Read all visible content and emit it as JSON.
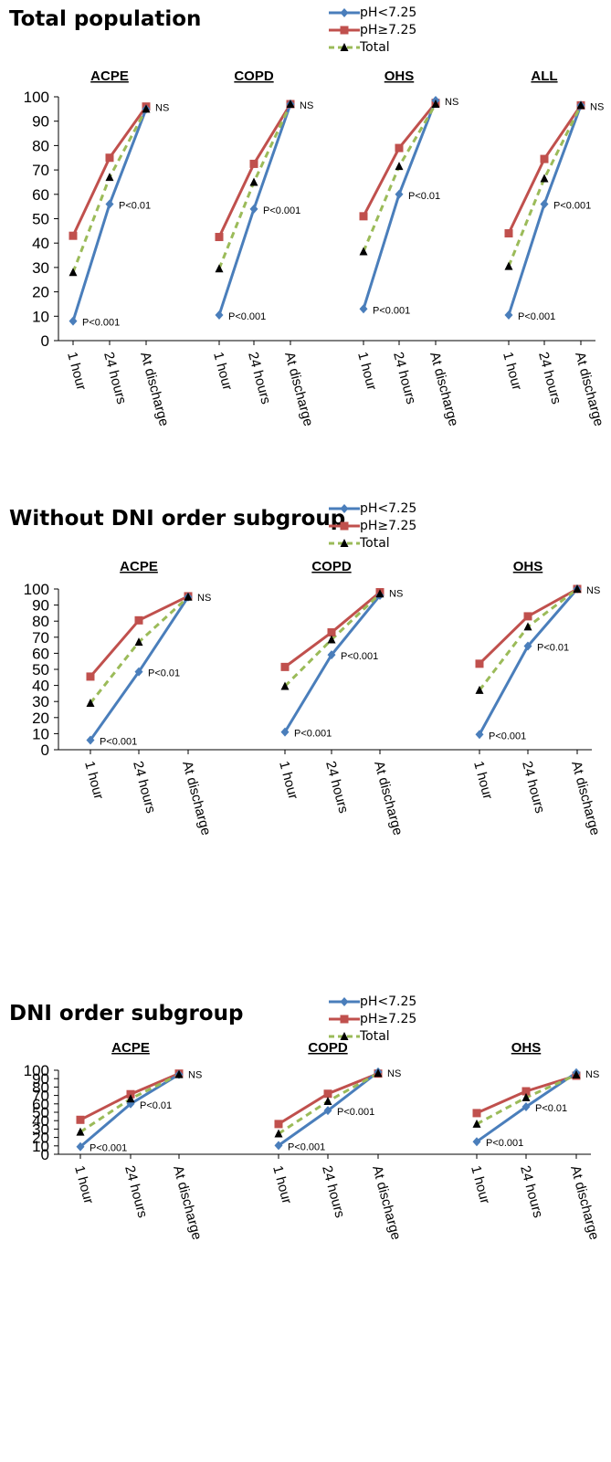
{
  "legend": {
    "series": [
      {
        "name": "pH<7.25",
        "color": "#4a7ebb",
        "marker": "diamond",
        "dash": false
      },
      {
        "name": "pH≥7.25",
        "color": "#c0504d",
        "marker": "square",
        "dash": false
      },
      {
        "name": "Total",
        "color": "#9bbb59",
        "marker": "triangle",
        "dash": true
      }
    ]
  },
  "chart_data": [
    {
      "type": "line",
      "title": "Total population",
      "ylim": [
        0,
        100
      ],
      "yticks": [
        0,
        10,
        20,
        30,
        40,
        50,
        60,
        70,
        80,
        90,
        100
      ],
      "categories": [
        "1 hour",
        "24 hours",
        "At discharge"
      ],
      "groups": [
        {
          "name": "ACPE",
          "series": [
            {
              "name": "pH<7.25",
              "values": [
                8,
                56,
                95
              ]
            },
            {
              "name": "pH≥7.25",
              "values": [
                43,
                75,
                96
              ]
            },
            {
              "name": "Total",
              "values": [
                28,
                67,
                95
              ]
            }
          ],
          "annotations": [
            "P<0.001",
            "P<0.01",
            "NS"
          ]
        },
        {
          "name": "COPD",
          "series": [
            {
              "name": "pH<7.25",
              "values": [
                10.5,
                54,
                97
              ]
            },
            {
              "name": "pH≥7.25",
              "values": [
                42.5,
                72.5,
                97
              ]
            },
            {
              "name": "Total",
              "values": [
                29.5,
                65,
                97
              ]
            }
          ],
          "annotations": [
            "P<0.001",
            "P<0.001",
            "NS"
          ]
        },
        {
          "name": "OHS",
          "series": [
            {
              "name": "pH<7.25",
              "values": [
                13,
                60,
                98.5
              ]
            },
            {
              "name": "pH≥7.25",
              "values": [
                51,
                79,
                97.5
              ]
            },
            {
              "name": "Total",
              "values": [
                36.5,
                71.5,
                97
              ]
            }
          ],
          "annotations": [
            "P<0.001",
            "P<0.01",
            "NS"
          ]
        },
        {
          "name": "ALL",
          "series": [
            {
              "name": "pH<7.25",
              "values": [
                10.5,
                56,
                96.5
              ]
            },
            {
              "name": "pH≥7.25",
              "values": [
                44,
                74.5,
                96.5
              ]
            },
            {
              "name": "Total",
              "values": [
                30.5,
                66.5,
                96.5
              ]
            }
          ],
          "annotations": [
            "P<0.001",
            "P<0.001",
            "NS"
          ]
        }
      ]
    },
    {
      "type": "line",
      "title": "Without DNI order subgroup",
      "ylim": [
        0,
        100
      ],
      "yticks": [
        0,
        10,
        20,
        30,
        40,
        50,
        60,
        70,
        80,
        90,
        100
      ],
      "categories": [
        "1 hour",
        "24 hours",
        "At discharge"
      ],
      "groups": [
        {
          "name": "ACPE",
          "series": [
            {
              "name": "pH<7.25",
              "values": [
                6,
                48.5,
                95
              ]
            },
            {
              "name": "pH≥7.25",
              "values": [
                45.5,
                80.5,
                95.5
              ]
            },
            {
              "name": "Total",
              "values": [
                29,
                67,
                95
              ]
            }
          ],
          "annotations": [
            "P<0.001",
            "P<0.01",
            "NS"
          ]
        },
        {
          "name": "COPD",
          "series": [
            {
              "name": "pH<7.25",
              "values": [
                11,
                59,
                96
              ]
            },
            {
              "name": "pH≥7.25",
              "values": [
                51.5,
                73,
                98
              ]
            },
            {
              "name": "Total",
              "values": [
                39.5,
                68.5,
                97
              ]
            }
          ],
          "annotations": [
            "P<0.001",
            "P<0.001",
            "NS"
          ]
        },
        {
          "name": "OHS",
          "series": [
            {
              "name": "pH<7.25",
              "values": [
                9.5,
                64.5,
                100
              ]
            },
            {
              "name": "pH≥7.25",
              "values": [
                53.5,
                83,
                100
              ]
            },
            {
              "name": "Total",
              "values": [
                37,
                76.5,
                100
              ]
            }
          ],
          "annotations": [
            "P<0.001",
            "P<0.01",
            "NS"
          ]
        }
      ]
    },
    {
      "type": "line",
      "title": "DNI order subgroup",
      "ylim": [
        0,
        100
      ],
      "yticks": [
        0,
        10,
        20,
        30,
        40,
        50,
        60,
        70,
        80,
        90,
        100
      ],
      "categories": [
        "1 hour",
        "24 hours",
        "At discharge"
      ],
      "groups": [
        {
          "name": "ACPE",
          "series": [
            {
              "name": "pH<7.25",
              "values": [
                9,
                60,
                95
              ]
            },
            {
              "name": "pH≥7.25",
              "values": [
                41,
                71.5,
                96
              ]
            },
            {
              "name": "Total",
              "values": [
                26.5,
                66,
                95
              ]
            }
          ],
          "annotations": [
            "P<0.001",
            "P<0.01",
            "NS"
          ]
        },
        {
          "name": "COPD",
          "series": [
            {
              "name": "pH<7.25",
              "values": [
                10.5,
                52,
                98
              ]
            },
            {
              "name": "pH≥7.25",
              "values": [
                36,
                72,
                96
              ]
            },
            {
              "name": "Total",
              "values": [
                24.5,
                63,
                96.5
              ]
            }
          ],
          "annotations": [
            "P<0.001",
            "P<0.001",
            "NS"
          ]
        },
        {
          "name": "OHS",
          "series": [
            {
              "name": "pH<7.25",
              "values": [
                15,
                56.5,
                97
              ]
            },
            {
              "name": "pH≥7.25",
              "values": [
                49,
                75,
                93.5
              ]
            },
            {
              "name": "Total",
              "values": [
                36,
                67.5,
                94.5
              ]
            }
          ],
          "annotations": [
            "P<0.001",
            "P<0.01",
            "NS"
          ]
        }
      ]
    }
  ]
}
